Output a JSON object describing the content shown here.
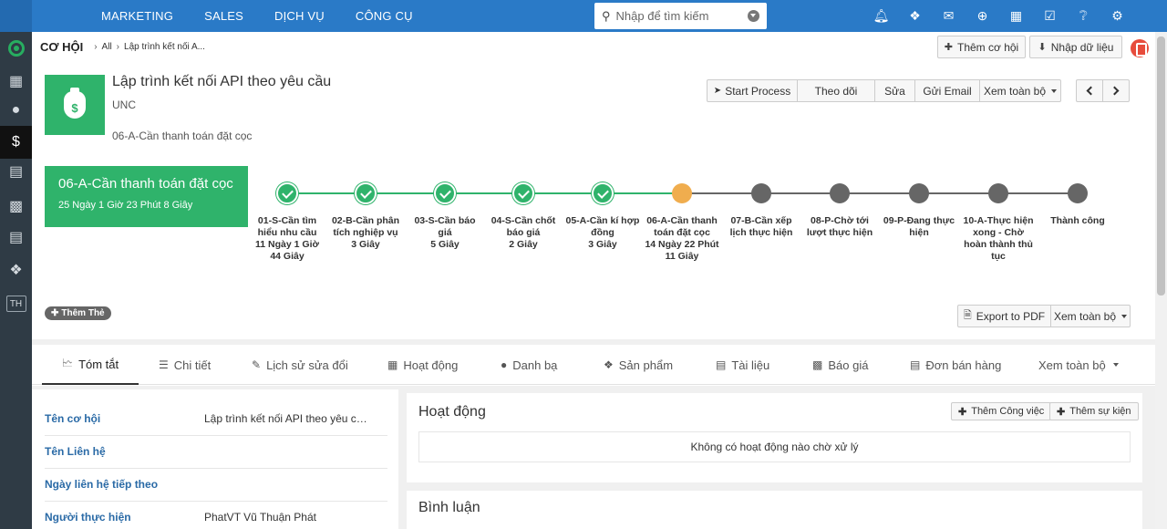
{
  "topnav": {
    "items": [
      "MARKETING",
      "SALES",
      "DỊCH VỤ",
      "CÔNG CỤ"
    ],
    "search_placeholder": "Nhập để tìm kiếm",
    "icons": [
      "bell-icon",
      "cubes-icon",
      "chat-icon",
      "plus-circle-icon",
      "calendar-icon",
      "checkbox-icon",
      "help-icon",
      "gear-icon"
    ]
  },
  "sidebar": {
    "items": [
      "dashboard-icon",
      "building-icon",
      "user-icon",
      "money-bag-icon",
      "contact-card-icon",
      "id-card-icon",
      "clipboard-icon",
      "box-icon"
    ],
    "user_badge": "TH"
  },
  "breadcrumb": {
    "module": "CƠ HỘI",
    "all": "All",
    "current": "Lập trình kết nối A..."
  },
  "header_actions": {
    "add": "Thêm cơ hội",
    "import": "Nhập dữ liệu"
  },
  "record": {
    "title": "Lập trình kết nối API theo yêu cầu",
    "subtitle": "UNC",
    "stage": "06-A-Cần thanh toán đặt cọc",
    "actions": [
      "Start Process",
      "Theo dõi",
      "Sửa",
      "Gửi Email",
      "Xem toàn bộ"
    ]
  },
  "current_stage": {
    "name": "06-A-Cần thanh toán đặt cọc",
    "time": "25 Ngày 1 Giờ 23 Phút 8 Giây"
  },
  "pipeline": [
    {
      "label": "01-S-Cần tìm hiểu nhu cầu",
      "time": "11 Ngày 1 Giờ 44 Giây",
      "status": "done"
    },
    {
      "label": "02-B-Cần phân tích nghiệp vụ",
      "time": "3 Giây",
      "status": "done"
    },
    {
      "label": "03-S-Cần báo giá",
      "time": "5 Giây",
      "status": "done"
    },
    {
      "label": "04-S-Cần chốt báo giá",
      "time": "2 Giây",
      "status": "done"
    },
    {
      "label": "05-A-Cần kí hợp đồng",
      "time": "3 Giây",
      "status": "done"
    },
    {
      "label": "06-A-Cần thanh toán đặt cọc",
      "time": "14 Ngày 22 Phút 11 Giây",
      "status": "current"
    },
    {
      "label": "07-B-Cần xếp lịch thực hiện",
      "time": "",
      "status": "todo"
    },
    {
      "label": "08-P-Chờ tới lượt thực hiện",
      "time": "",
      "status": "todo"
    },
    {
      "label": "09-P-Đang thực hiện",
      "time": "",
      "status": "todo"
    },
    {
      "label": "10-A-Thực hiện xong - Chờ hoàn thành thủ tục",
      "time": "",
      "status": "todo"
    },
    {
      "label": "Thành công",
      "time": "",
      "status": "todo"
    }
  ],
  "tag_button": "Thêm Thẻ",
  "export": {
    "pdf": "Export to PDF",
    "view_all": "Xem toàn bộ"
  },
  "tabs": [
    "Tóm tắt",
    "Chi tiết",
    "Lịch sử sửa đổi",
    "Hoạt động",
    "Danh bạ",
    "Sản phẩm",
    "Tài liệu",
    "Báo giá",
    "Đơn bán hàng",
    "Xem toàn bộ"
  ],
  "summary_fields": [
    {
      "label": "Tên cơ hội",
      "value": "Lập trình kết nối API theo yêu cầu"
    },
    {
      "label": "Tên Liên hệ",
      "value": ""
    },
    {
      "label": "Ngày liên hệ tiếp theo",
      "value": ""
    },
    {
      "label": "Người thực hiện",
      "value": "PhatVT Vũ Thuận Phát"
    }
  ],
  "activity_panel": {
    "title": "Hoạt động",
    "add_task": "Thêm Công việc",
    "add_event": "Thêm sự kiện",
    "empty": "Không có hoạt động nào chờ xử lý"
  },
  "comment_panel": {
    "title": "Bình luận"
  },
  "colors": {
    "topbar": "#2a7ac7",
    "sidebar": "#2f3b45",
    "green": "#2fb36b",
    "current": "#f0ad4e",
    "todo": "#666666"
  }
}
